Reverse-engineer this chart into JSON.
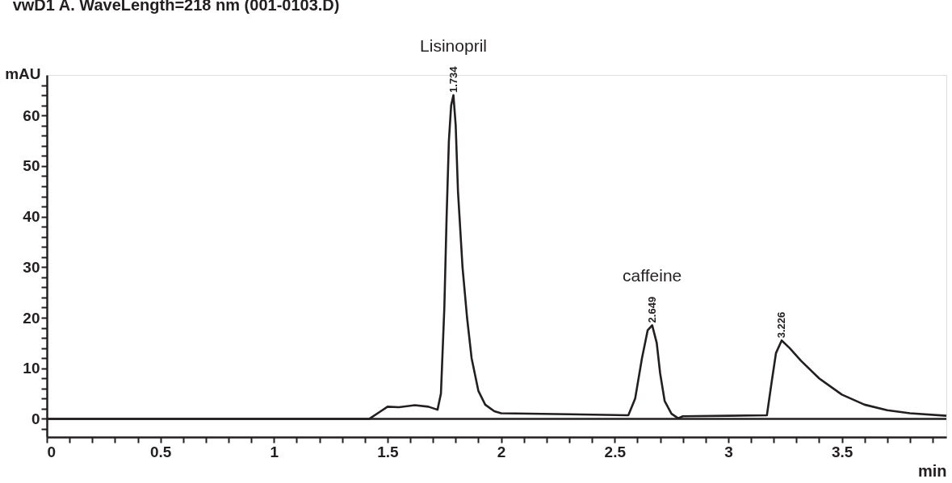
{
  "chart_data": {
    "type": "line",
    "title": "vwD1 A. WaveLength=218 nm (001-0103.D)",
    "xlabel": "min",
    "ylabel": "mAU",
    "x": [
      0,
      0.5,
      1.0,
      1.42,
      1.47,
      1.5,
      1.55,
      1.62,
      1.68,
      1.72,
      1.735,
      1.75,
      1.76,
      1.77,
      1.78,
      1.79,
      1.8,
      1.81,
      1.83,
      1.85,
      1.87,
      1.9,
      1.93,
      1.97,
      2.0,
      2.3,
      2.56,
      2.59,
      2.62,
      2.645,
      2.665,
      2.685,
      2.7,
      2.72,
      2.75,
      2.78,
      2.8,
      3.0,
      3.17,
      3.19,
      3.21,
      3.235,
      3.27,
      3.32,
      3.4,
      3.5,
      3.6,
      3.7,
      3.8,
      3.96
    ],
    "series": [
      {
        "color": "#231f20",
        "values": [
          0,
          0,
          0,
          0,
          1.5,
          2.4,
          2.3,
          2.7,
          2.4,
          1.8,
          5,
          22,
          40,
          55,
          62,
          64,
          58,
          45,
          30,
          20,
          12,
          5.5,
          2.8,
          1.5,
          1.1,
          0.9,
          0.7,
          4,
          12,
          17.5,
          18.5,
          15,
          9,
          3.5,
          1,
          0.1,
          0.5,
          0.6,
          0.7,
          7,
          13,
          15.5,
          14,
          11.5,
          8,
          4.8,
          2.8,
          1.7,
          1.1,
          0.6
        ]
      }
    ],
    "xlim": [
      0,
      3.96
    ],
    "ylim": [
      -3.6,
      68
    ],
    "xticks": [
      0,
      {
        "value": 0.1,
        "label": null
      },
      {
        "value": 0.2,
        "label": null
      },
      {
        "value": 0.3,
        "label": null
      },
      {
        "value": 0.4,
        "label": null
      },
      0.5,
      {
        "value": 0.6,
        "label": null
      },
      {
        "value": 0.7,
        "label": null
      },
      {
        "value": 0.8,
        "label": null
      },
      {
        "value": 0.9,
        "label": null
      },
      1,
      {
        "value": 1.1,
        "label": null
      },
      {
        "value": 1.2,
        "label": null
      },
      {
        "value": 1.3,
        "label": null
      },
      {
        "value": 1.4,
        "label": null
      },
      1.5,
      {
        "value": 1.6,
        "label": null
      },
      {
        "value": 1.7,
        "label": null
      },
      {
        "value": 1.8,
        "label": null
      },
      {
        "value": 1.9,
        "label": null
      },
      2,
      {
        "value": 2.1,
        "label": null
      },
      {
        "value": 2.2,
        "label": null
      },
      {
        "value": 2.3,
        "label": null
      },
      {
        "value": 2.4,
        "label": null
      },
      2.5,
      {
        "value": 2.6,
        "label": null
      },
      {
        "value": 2.7,
        "label": null
      },
      {
        "value": 2.8,
        "label": null
      },
      {
        "value": 2.9,
        "label": null
      },
      3,
      {
        "value": 3.1,
        "label": null
      },
      {
        "value": 3.2,
        "label": null
      },
      {
        "value": 3.3,
        "label": null
      },
      {
        "value": 3.4,
        "label": null
      },
      3.5,
      {
        "value": 3.6,
        "label": null
      },
      {
        "value": 3.7,
        "label": null
      },
      {
        "value": 3.8,
        "label": null
      },
      {
        "value": 3.9,
        "label": null
      }
    ],
    "yticks": [
      {
        "value": -2,
        "label": null
      },
      0,
      {
        "value": 2,
        "label": null
      },
      {
        "value": 4,
        "label": null
      },
      {
        "value": 6,
        "label": null
      },
      {
        "value": 8,
        "label": null
      },
      10,
      {
        "value": 12,
        "label": null
      },
      {
        "value": 14,
        "label": null
      },
      {
        "value": 16,
        "label": null
      },
      {
        "value": 18,
        "label": null
      },
      20,
      {
        "value": 22,
        "label": null
      },
      {
        "value": 24,
        "label": null
      },
      {
        "value": 26,
        "label": null
      },
      {
        "value": 28,
        "label": null
      },
      30,
      {
        "value": 32,
        "label": null
      },
      {
        "value": 34,
        "label": null
      },
      {
        "value": 36,
        "label": null
      },
      {
        "value": 38,
        "label": null
      },
      40,
      {
        "value": 42,
        "label": null
      },
      {
        "value": 44,
        "label": null
      },
      {
        "value": 46,
        "label": null
      },
      {
        "value": 48,
        "label": null
      },
      50,
      {
        "value": 52,
        "label": null
      },
      {
        "value": 54,
        "label": null
      },
      {
        "value": 56,
        "label": null
      },
      {
        "value": 58,
        "label": null
      },
      60,
      {
        "value": 62,
        "label": null
      },
      {
        "value": 64,
        "label": null
      },
      {
        "value": 66,
        "label": null
      }
    ],
    "ref_lines": [
      {
        "axis": "y",
        "value": 0,
        "color": "#231f20"
      }
    ],
    "annotations": [
      "Lisinopril",
      {
        "text": "1.734",
        "x": 1.79,
        "y": 64
      },
      "caffeine",
      {
        "text": "2.649",
        "x": 2.665,
        "y": 18.5
      },
      {
        "text": "3.226",
        "x": 3.235,
        "y": 15.5
      }
    ],
    "grid": false,
    "marker": "none",
    "line_style": "solid"
  }
}
